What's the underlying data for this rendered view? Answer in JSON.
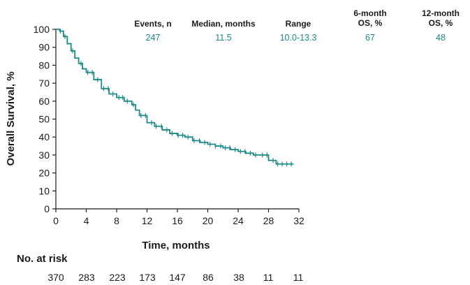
{
  "chart_data": {
    "type": "line",
    "subtype": "kaplan-meier",
    "xlabel": "Time, months",
    "ylabel": "Overall Survival, %",
    "xlim": [
      0,
      32
    ],
    "ylim": [
      0,
      100
    ],
    "xticks": [
      0,
      4,
      8,
      12,
      16,
      20,
      24,
      28,
      32
    ],
    "yticks": [
      0,
      10,
      20,
      30,
      40,
      50,
      60,
      70,
      80,
      90,
      100
    ],
    "grid": false,
    "color": "#1a8a86",
    "series": [
      {
        "x": [
          0,
          0.5,
          1,
          1.5,
          2,
          2.5,
          3,
          3.5,
          4,
          5,
          6,
          7,
          8,
          9,
          10,
          10.5,
          11,
          12,
          13,
          14,
          15,
          16,
          17,
          18,
          19,
          20,
          21,
          22,
          23,
          24,
          25,
          26,
          27,
          28,
          29,
          30,
          31
        ],
        "y": [
          100,
          99,
          96,
          92,
          88,
          84,
          81,
          78,
          76,
          72,
          67,
          64,
          62,
          60,
          58,
          55,
          52,
          48,
          46,
          44,
          42,
          41,
          40,
          38,
          37,
          36,
          35,
          34,
          33,
          32,
          31,
          30,
          30,
          27,
          25,
          25,
          25
        ]
      }
    ],
    "censor_x": [
      0.6,
      1.2,
      2.2,
      3.3,
      4.2,
      4.8,
      5.5,
      6.3,
      6.9,
      7.5,
      8.3,
      8.8,
      9.4,
      10.2,
      11.2,
      11.8,
      12.6,
      13.2,
      13.9,
      14.6,
      15.3,
      16.1,
      16.7,
      17.4,
      18.2,
      18.9,
      19.6,
      20.3,
      21.0,
      21.7,
      22.3,
      22.9,
      23.6,
      24.3,
      24.9,
      25.6,
      26.3,
      27.2,
      27.8,
      28.6,
      29.2,
      29.8,
      30.4,
      31.0
    ],
    "summary_table": {
      "headers": [
        [
          "Events, n"
        ],
        [
          "Median, months"
        ],
        [
          "Range"
        ],
        [
          "6-month",
          "OS, %"
        ],
        [
          "12-month",
          "OS, %"
        ]
      ],
      "values": [
        "247",
        "11.5",
        "10.0-13.3",
        "67",
        "48"
      ]
    },
    "risk_table": {
      "title": "No. at risk",
      "times": [
        0,
        4,
        8,
        12,
        16,
        20,
        24,
        28,
        32
      ],
      "counts": [
        "370",
        "283",
        "223",
        "173",
        "147",
        "86",
        "38",
        "11",
        "11"
      ]
    }
  }
}
